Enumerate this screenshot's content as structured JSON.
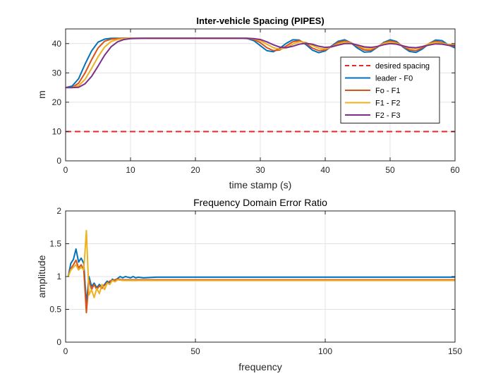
{
  "colors": {
    "background": "#ffffff",
    "axis": "#262626",
    "grid": "#e3e3e3",
    "desired": "#e82727",
    "s0": "#0072bd",
    "s1": "#d95319",
    "s2": "#edb120",
    "s3": "#7e2f8e"
  },
  "chart_data": [
    {
      "type": "line",
      "title": "Inter-vehicle Spacing (PIPES)",
      "xlabel": "time stamp (s)",
      "ylabel": "m",
      "xlim": [
        0,
        60
      ],
      "ylim": [
        0,
        45
      ],
      "xticks": [
        0,
        10,
        20,
        30,
        40,
        50,
        60
      ],
      "yticks": [
        0,
        10,
        20,
        30,
        40
      ],
      "grid": true,
      "legend_position": "right",
      "series": [
        {
          "name": "desired spacing",
          "style": "dashed",
          "color": "#e82727",
          "x": [
            0,
            60
          ],
          "y": [
            10,
            10
          ]
        },
        {
          "name": "leader -  F0",
          "color": "#0072bd",
          "x": [
            0,
            1,
            2,
            3,
            4,
            5,
            6,
            7,
            8,
            9,
            10,
            12,
            15,
            20,
            25,
            27,
            28,
            29,
            30,
            31,
            32,
            33,
            34,
            35,
            36,
            37,
            38,
            39,
            40,
            41,
            42,
            43,
            44,
            45,
            46,
            47,
            48,
            49,
            50,
            51,
            52,
            53,
            54,
            55,
            56,
            57,
            58,
            59,
            60
          ],
          "y": [
            25,
            25.5,
            28,
            33,
            37.5,
            40.5,
            41.5,
            41.8,
            41.8,
            41.8,
            41.8,
            41.8,
            41.8,
            41.8,
            41.8,
            41.8,
            41.7,
            41,
            39.3,
            37.6,
            37.2,
            38.4,
            40.1,
            41.3,
            41.2,
            39.7,
            37.8,
            36.9,
            37.5,
            39.2,
            40.8,
            41.3,
            40.2,
            38.4,
            37.1,
            37.2,
            38.7,
            40.4,
            41.3,
            40.7,
            38.8,
            37.3,
            37.0,
            38.2,
            40.0,
            41.2,
            41.0,
            39.5,
            38.5
          ]
        },
        {
          "name": "Fo - F1",
          "color": "#d95319",
          "x": [
            0,
            1,
            2,
            3,
            4,
            5,
            6,
            7,
            8,
            9,
            10,
            12,
            15,
            20,
            25,
            28,
            29,
            30,
            31,
            32,
            33,
            34,
            35,
            36,
            37,
            38,
            39,
            40,
            41,
            42,
            43,
            44,
            45,
            46,
            47,
            48,
            49,
            50,
            51,
            52,
            53,
            54,
            55,
            56,
            57,
            58,
            59,
            60
          ],
          "y": [
            25,
            25,
            26.5,
            30,
            34.5,
            38.5,
            40.8,
            41.5,
            41.7,
            41.8,
            41.8,
            41.8,
            41.8,
            41.8,
            41.8,
            41.8,
            41.4,
            40.3,
            38.6,
            37.6,
            37.8,
            39.2,
            40.6,
            41.0,
            40.1,
            38.5,
            37.6,
            37.8,
            39.0,
            40.4,
            40.9,
            40.3,
            39.0,
            37.8,
            37.7,
            38.8,
            40.2,
            40.9,
            40.4,
            39.0,
            37.8,
            37.6,
            38.6,
            40.0,
            40.8,
            40.4,
            39.4,
            39.0
          ]
        },
        {
          "name": "F1 - F2",
          "color": "#edb120",
          "x": [
            0,
            1,
            2,
            3,
            4,
            5,
            6,
            7,
            8,
            9,
            10,
            12,
            15,
            20,
            25,
            28,
            29,
            30,
            31,
            32,
            33,
            34,
            35,
            36,
            37,
            38,
            39,
            40,
            41,
            42,
            43,
            44,
            45,
            46,
            47,
            48,
            49,
            50,
            51,
            52,
            53,
            54,
            55,
            56,
            57,
            58,
            59,
            60
          ],
          "y": [
            25,
            25,
            25.6,
            27.8,
            31.5,
            35.5,
            38.8,
            40.7,
            41.4,
            41.7,
            41.8,
            41.8,
            41.8,
            41.8,
            41.8,
            41.8,
            41.6,
            41.0,
            39.8,
            38.6,
            38.1,
            38.6,
            39.8,
            40.6,
            40.4,
            39.4,
            38.4,
            38.2,
            38.9,
            39.9,
            40.5,
            40.2,
            39.3,
            38.4,
            38.3,
            39.0,
            40.0,
            40.5,
            40.1,
            39.2,
            38.4,
            38.3,
            39.0,
            39.9,
            40.4,
            40.1,
            39.7,
            39.6
          ]
        },
        {
          "name": "F2 - F3",
          "color": "#7e2f8e",
          "x": [
            0,
            1,
            2,
            3,
            4,
            5,
            6,
            7,
            8,
            9,
            10,
            12,
            15,
            20,
            25,
            28,
            29,
            30,
            31,
            32,
            33,
            34,
            35,
            36,
            37,
            38,
            39,
            40,
            41,
            42,
            43,
            44,
            45,
            46,
            47,
            48,
            49,
            50,
            51,
            52,
            53,
            54,
            55,
            56,
            57,
            58,
            59,
            60
          ],
          "y": [
            25,
            25,
            25.1,
            26.3,
            28.8,
            32.3,
            36.0,
            38.9,
            40.6,
            41.4,
            41.7,
            41.8,
            41.8,
            41.8,
            41.8,
            41.8,
            41.7,
            41.4,
            40.6,
            39.6,
            38.8,
            38.6,
            39.1,
            39.8,
            40.1,
            39.8,
            39.1,
            38.7,
            38.9,
            39.5,
            40.0,
            40.0,
            39.5,
            38.9,
            38.7,
            39.0,
            39.6,
            40.0,
            39.8,
            39.2,
            38.7,
            38.6,
            39.0,
            39.5,
            39.9,
            39.8,
            39.4,
            39.3
          ]
        }
      ]
    },
    {
      "type": "line",
      "title": "Frequency Domain Error Ratio",
      "xlabel": "frequency",
      "ylabel": "amplitude",
      "xlim": [
        0,
        150
      ],
      "ylim": [
        0,
        2
      ],
      "xticks": [
        0,
        50,
        100,
        150
      ],
      "yticks": [
        0,
        0.5,
        1,
        1.5,
        2
      ],
      "grid": true,
      "series": [
        {
          "color": "#0072bd",
          "x": [
            1,
            2,
            3,
            4,
            5,
            6,
            7,
            8,
            9,
            10,
            11,
            12,
            13,
            14,
            15,
            16,
            17,
            18,
            19,
            20,
            21,
            22,
            23,
            24,
            25,
            26,
            27,
            28,
            30,
            35,
            40,
            50,
            150
          ],
          "y": [
            1.0,
            1.2,
            1.26,
            1.42,
            1.22,
            1.28,
            1.2,
            0.58,
            1.0,
            0.85,
            0.9,
            0.83,
            0.88,
            0.84,
            0.88,
            0.93,
            0.9,
            0.96,
            0.94,
            0.97,
            1.0,
            0.98,
            1.0,
            0.99,
            0.98,
            1.0,
            0.98,
            0.99,
            0.98,
            0.99,
            0.99,
            0.99,
            0.99
          ]
        },
        {
          "color": "#d95319",
          "x": [
            1,
            2,
            3,
            4,
            5,
            6,
            7,
            8,
            9,
            10,
            11,
            12,
            13,
            14,
            15,
            16,
            17,
            18,
            19,
            20,
            22,
            25,
            30,
            40,
            50,
            150
          ],
          "y": [
            1.0,
            1.12,
            1.18,
            1.25,
            1.13,
            1.18,
            1.1,
            0.45,
            0.95,
            0.8,
            0.88,
            0.8,
            0.86,
            0.82,
            0.87,
            0.9,
            0.93,
            0.94,
            0.95,
            0.96,
            0.95,
            0.95,
            0.95,
            0.95,
            0.95,
            0.95
          ]
        },
        {
          "color": "#edb120",
          "x": [
            1,
            2,
            3,
            4,
            5,
            6,
            7,
            8,
            9,
            10,
            11,
            12,
            13,
            14,
            15,
            16,
            17,
            18,
            19,
            20,
            22,
            25,
            30,
            40,
            50,
            150
          ],
          "y": [
            1.0,
            1.1,
            1.14,
            1.18,
            1.1,
            1.14,
            1.1,
            1.7,
            0.72,
            0.8,
            0.68,
            0.82,
            0.74,
            0.88,
            0.8,
            0.9,
            0.88,
            0.94,
            0.92,
            0.95,
            0.94,
            0.94,
            0.94,
            0.94,
            0.94,
            0.94
          ]
        }
      ]
    }
  ]
}
